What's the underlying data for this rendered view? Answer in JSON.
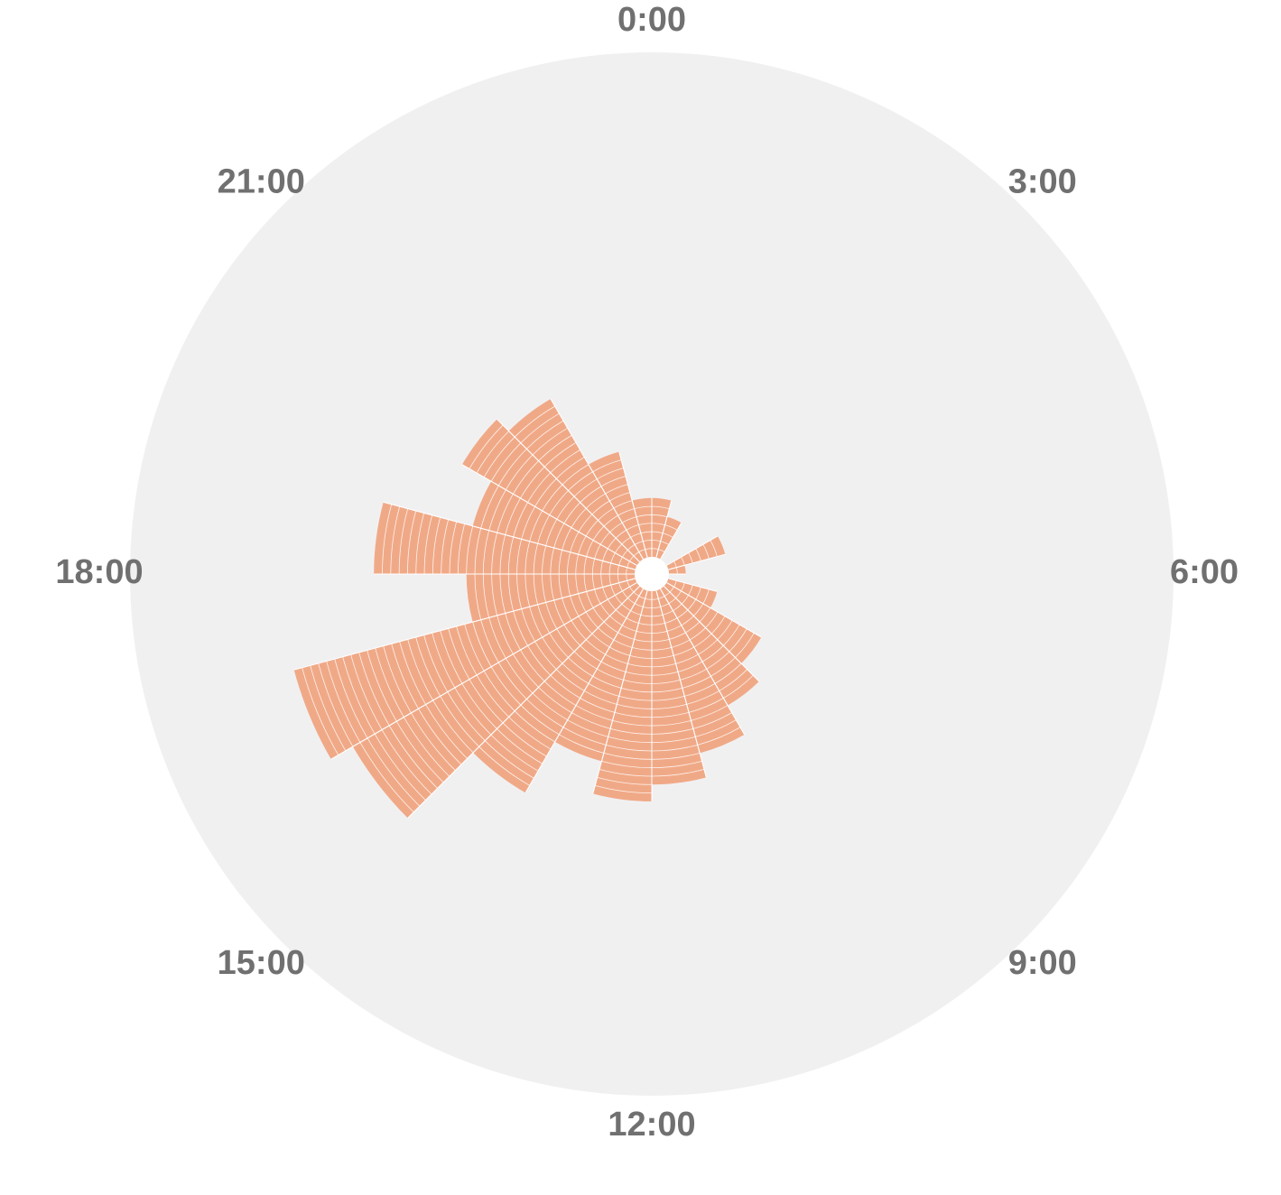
{
  "chart_data": {
    "type": "polar-bar",
    "title": "",
    "angular_axis": {
      "direction": "clockwise",
      "labels": [
        "0:00",
        "3:00",
        "6:00",
        "9:00",
        "12:00",
        "15:00",
        "18:00",
        "21:00"
      ]
    },
    "bars": [
      {
        "hour": 0,
        "value": 7
      },
      {
        "hour": 1,
        "value": 5
      },
      {
        "hour": 2,
        "value": 0
      },
      {
        "hour": 3,
        "value": 0
      },
      {
        "hour": 4,
        "value": 7
      },
      {
        "hour": 5,
        "value": 2
      },
      {
        "hour": 6,
        "value": 0
      },
      {
        "hour": 7,
        "value": 6
      },
      {
        "hour": 8,
        "value": 13
      },
      {
        "hour": 9,
        "value": 16
      },
      {
        "hour": 10,
        "value": 20
      },
      {
        "hour": 11,
        "value": 23
      },
      {
        "hour": 12,
        "value": 25
      },
      {
        "hour": 13,
        "value": 21
      },
      {
        "hour": 14,
        "value": 28
      },
      {
        "hour": 15,
        "value": 39
      },
      {
        "hour": 16,
        "value": 42
      },
      {
        "hour": 17,
        "value": 20
      },
      {
        "hour": 18,
        "value": 31
      },
      {
        "hour": 19,
        "value": 20
      },
      {
        "hour": 20,
        "value": 24
      },
      {
        "hour": 21,
        "value": 22
      },
      {
        "hour": 22,
        "value": 13
      },
      {
        "hour": 23,
        "value": 7
      }
    ],
    "r_max": 60,
    "ring_step": 1,
    "colors": {
      "bar_fill": "#f0a987",
      "ring_lines": "#ffffff",
      "background_disc": "#f1f0f1",
      "label_text": "#707070"
    }
  }
}
